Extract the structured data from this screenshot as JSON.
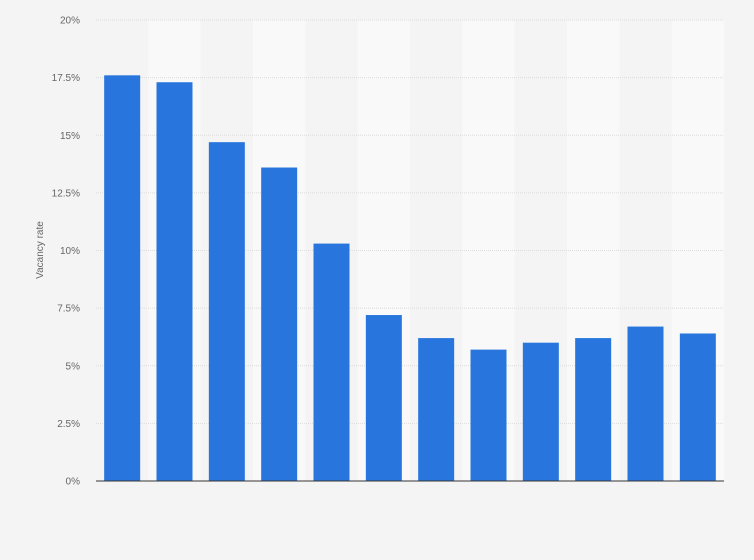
{
  "chart_data": {
    "type": "bar",
    "title": "",
    "xlabel": "",
    "ylabel": "Vacancy rate",
    "ylim": [
      0,
      20
    ],
    "yticks": [
      "0%",
      "2.5%",
      "5%",
      "7.5%",
      "10%",
      "12.5%",
      "15%",
      "17.5%",
      "20%"
    ],
    "ytick_values": [
      0,
      2.5,
      5,
      7.5,
      10,
      12.5,
      15,
      17.5,
      20
    ],
    "values": [
      17.6,
      17.3,
      14.7,
      13.6,
      10.3,
      7.2,
      6.2,
      5.7,
      6.0,
      6.2,
      6.7,
      6.4
    ],
    "unit": "%",
    "grid": true,
    "legend": "none",
    "colors": {
      "bar": "#2876dd",
      "band_light": "#f9f9f9",
      "background": "#f4f4f4",
      "grid": "#dcdcdc",
      "axis": "#333333"
    }
  }
}
